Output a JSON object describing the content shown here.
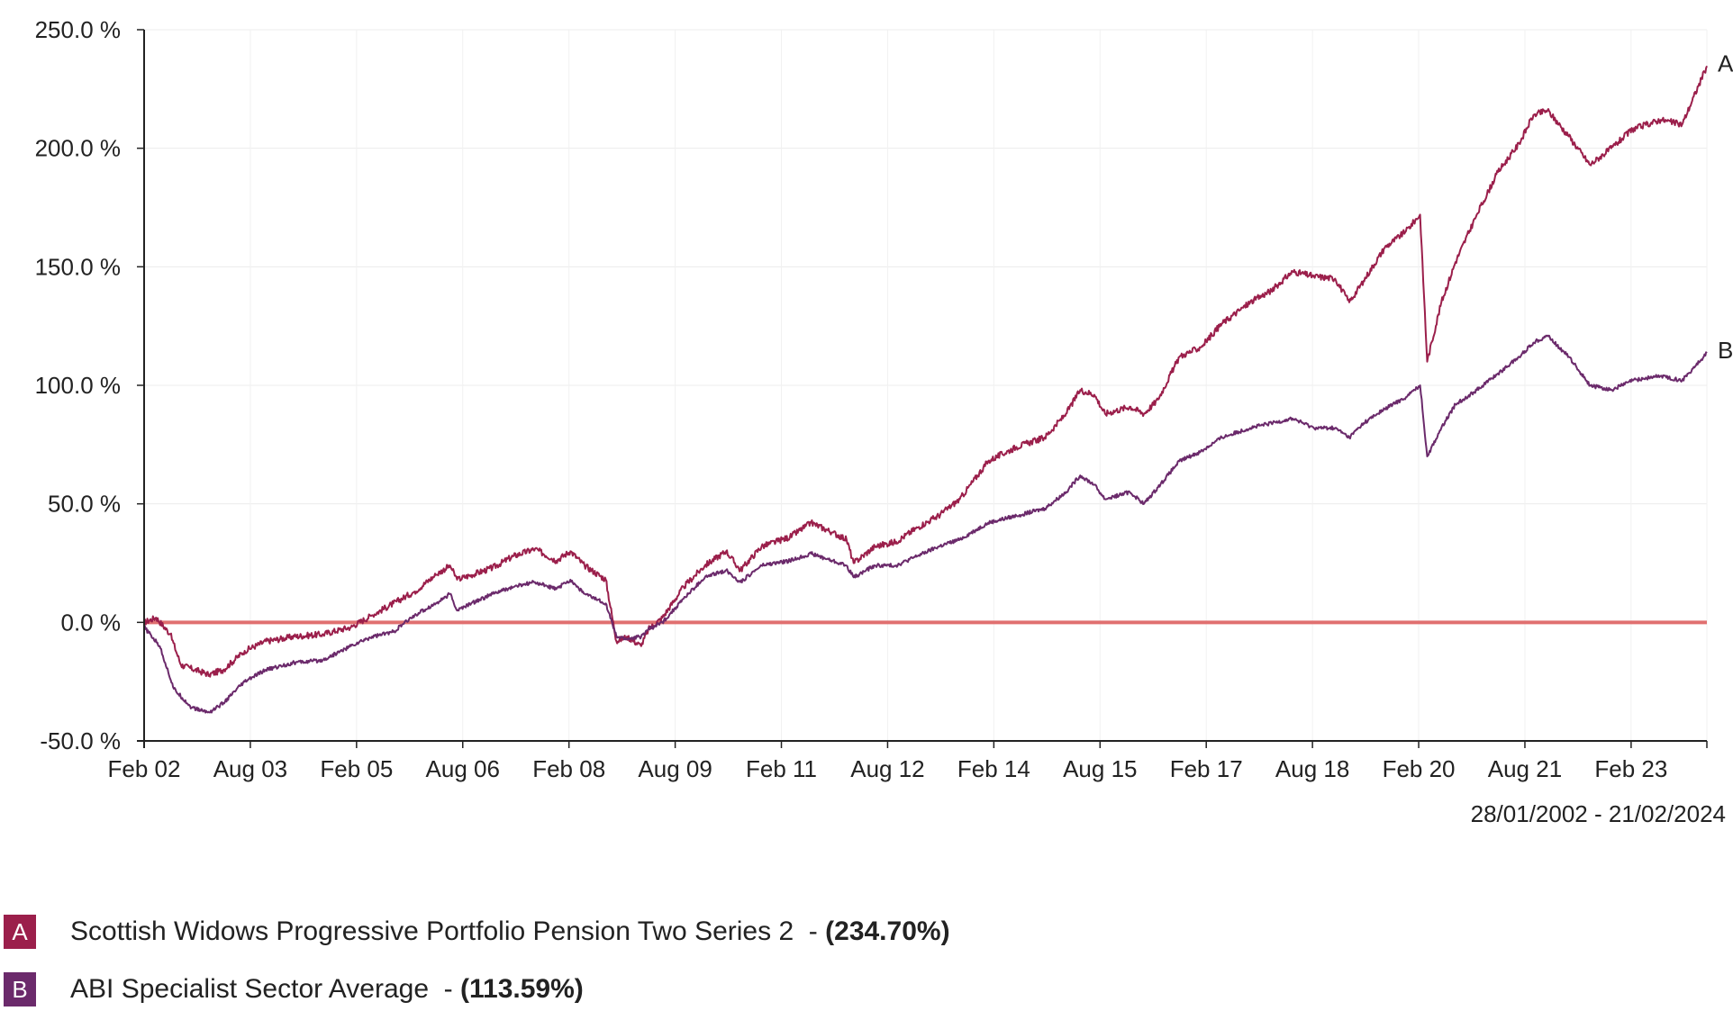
{
  "chart_data": {
    "type": "line",
    "x_ticks": [
      "Feb 02",
      "Aug 03",
      "Feb 05",
      "Aug 06",
      "Feb 08",
      "Aug 09",
      "Feb 11",
      "Aug 12",
      "Feb 14",
      "Aug 15",
      "Feb 17",
      "Aug 18",
      "Feb 20",
      "Aug 21",
      "Feb 23"
    ],
    "y_ticks": [
      250,
      200,
      150,
      100,
      50,
      0,
      -50
    ],
    "y_tick_labels": [
      "250.0 %",
      "200.0 %",
      "150.0 %",
      "100.0 %",
      "50.0 %",
      "0.0 %",
      "-50.0 %"
    ],
    "ylim": [
      -50,
      250
    ],
    "xlim": [
      2002.08,
      2024.15
    ],
    "baseline": 0,
    "date_range": "28/01/2002 - 21/02/2024",
    "series": [
      {
        "id": "A",
        "name": "Scottish Widows Progressive Portfolio Pension Two Series 2",
        "total_return": "(234.70%)",
        "color": "#9b1f4b",
        "points": [
          [
            2002.08,
            0
          ],
          [
            2002.25,
            2
          ],
          [
            2002.45,
            -5
          ],
          [
            2002.6,
            -18
          ],
          [
            2002.8,
            -20
          ],
          [
            2003.0,
            -22
          ],
          [
            2003.2,
            -20
          ],
          [
            2003.5,
            -12
          ],
          [
            2003.8,
            -8
          ],
          [
            2004.2,
            -6
          ],
          [
            2004.6,
            -5
          ],
          [
            2005.0,
            -2
          ],
          [
            2005.3,
            3
          ],
          [
            2005.6,
            8
          ],
          [
            2005.9,
            13
          ],
          [
            2006.2,
            20
          ],
          [
            2006.4,
            24
          ],
          [
            2006.5,
            18
          ],
          [
            2006.7,
            20
          ],
          [
            2007.0,
            23
          ],
          [
            2007.3,
            28
          ],
          [
            2007.6,
            31
          ],
          [
            2007.9,
            26
          ],
          [
            2008.1,
            30
          ],
          [
            2008.3,
            24
          ],
          [
            2008.6,
            18
          ],
          [
            2008.75,
            -8
          ],
          [
            2008.9,
            -6
          ],
          [
            2009.1,
            -10
          ],
          [
            2009.2,
            -3
          ],
          [
            2009.4,
            2
          ],
          [
            2009.7,
            15
          ],
          [
            2010.0,
            24
          ],
          [
            2010.3,
            30
          ],
          [
            2010.5,
            22
          ],
          [
            2010.8,
            32
          ],
          [
            2011.2,
            36
          ],
          [
            2011.5,
            42
          ],
          [
            2011.8,
            38
          ],
          [
            2012.0,
            35
          ],
          [
            2012.1,
            25
          ],
          [
            2012.4,
            32
          ],
          [
            2012.7,
            34
          ],
          [
            2013.0,
            40
          ],
          [
            2013.3,
            45
          ],
          [
            2013.6,
            52
          ],
          [
            2014.0,
            68
          ],
          [
            2014.4,
            74
          ],
          [
            2014.8,
            78
          ],
          [
            2015.1,
            88
          ],
          [
            2015.3,
            98
          ],
          [
            2015.5,
            96
          ],
          [
            2015.65,
            88
          ],
          [
            2016.0,
            91
          ],
          [
            2016.2,
            88
          ],
          [
            2016.4,
            94
          ],
          [
            2016.7,
            112
          ],
          [
            2017.0,
            116
          ],
          [
            2017.3,
            126
          ],
          [
            2017.7,
            135
          ],
          [
            2018.0,
            140
          ],
          [
            2018.3,
            148
          ],
          [
            2018.6,
            146
          ],
          [
            2018.9,
            145
          ],
          [
            2019.1,
            135
          ],
          [
            2019.3,
            144
          ],
          [
            2019.6,
            158
          ],
          [
            2019.9,
            165
          ],
          [
            2020.1,
            172
          ],
          [
            2020.2,
            110
          ],
          [
            2020.4,
            135
          ],
          [
            2020.6,
            152
          ],
          [
            2020.9,
            172
          ],
          [
            2021.2,
            190
          ],
          [
            2021.5,
            202
          ],
          [
            2021.7,
            214
          ],
          [
            2021.9,
            216
          ],
          [
            2022.2,
            205
          ],
          [
            2022.5,
            193
          ],
          [
            2022.8,
            200
          ],
          [
            2023.1,
            208
          ],
          [
            2023.5,
            212
          ],
          [
            2023.8,
            210
          ],
          [
            2024.15,
            234.7
          ]
        ]
      },
      {
        "id": "B",
        "name": "ABI Specialist Sector Average",
        "total_return": "(113.59%)",
        "color": "#6b2a6b",
        "points": [
          [
            2002.08,
            -2
          ],
          [
            2002.3,
            -10
          ],
          [
            2002.5,
            -28
          ],
          [
            2002.75,
            -36
          ],
          [
            2003.0,
            -38
          ],
          [
            2003.2,
            -34
          ],
          [
            2003.5,
            -25
          ],
          [
            2003.8,
            -20
          ],
          [
            2004.2,
            -17
          ],
          [
            2004.6,
            -16
          ],
          [
            2005.0,
            -10
          ],
          [
            2005.3,
            -6
          ],
          [
            2005.6,
            -4
          ],
          [
            2005.9,
            3
          ],
          [
            2006.2,
            8
          ],
          [
            2006.4,
            12
          ],
          [
            2006.5,
            5
          ],
          [
            2006.7,
            8
          ],
          [
            2007.0,
            12
          ],
          [
            2007.3,
            15
          ],
          [
            2007.6,
            17
          ],
          [
            2007.9,
            14
          ],
          [
            2008.1,
            18
          ],
          [
            2008.3,
            12
          ],
          [
            2008.6,
            8
          ],
          [
            2008.75,
            -6
          ],
          [
            2008.9,
            -7
          ],
          [
            2009.1,
            -6
          ],
          [
            2009.2,
            -3
          ],
          [
            2009.4,
            0
          ],
          [
            2009.7,
            10
          ],
          [
            2010.0,
            19
          ],
          [
            2010.3,
            22
          ],
          [
            2010.5,
            17
          ],
          [
            2010.8,
            24
          ],
          [
            2011.2,
            26
          ],
          [
            2011.5,
            29
          ],
          [
            2011.8,
            26
          ],
          [
            2012.0,
            24
          ],
          [
            2012.1,
            19
          ],
          [
            2012.4,
            24
          ],
          [
            2012.7,
            24
          ],
          [
            2013.0,
            28
          ],
          [
            2013.3,
            32
          ],
          [
            2013.6,
            35
          ],
          [
            2014.0,
            42
          ],
          [
            2014.4,
            45
          ],
          [
            2014.8,
            48
          ],
          [
            2015.1,
            55
          ],
          [
            2015.3,
            62
          ],
          [
            2015.5,
            58
          ],
          [
            2015.65,
            52
          ],
          [
            2016.0,
            55
          ],
          [
            2016.2,
            50
          ],
          [
            2016.4,
            57
          ],
          [
            2016.7,
            68
          ],
          [
            2017.0,
            72
          ],
          [
            2017.3,
            78
          ],
          [
            2017.7,
            82
          ],
          [
            2018.0,
            84
          ],
          [
            2018.3,
            86
          ],
          [
            2018.6,
            82
          ],
          [
            2018.9,
            82
          ],
          [
            2019.1,
            78
          ],
          [
            2019.3,
            84
          ],
          [
            2019.6,
            90
          ],
          [
            2019.9,
            95
          ],
          [
            2020.1,
            100
          ],
          [
            2020.2,
            70
          ],
          [
            2020.4,
            82
          ],
          [
            2020.6,
            92
          ],
          [
            2020.9,
            98
          ],
          [
            2021.2,
            105
          ],
          [
            2021.5,
            112
          ],
          [
            2021.7,
            118
          ],
          [
            2021.9,
            121
          ],
          [
            2022.2,
            112
          ],
          [
            2022.5,
            100
          ],
          [
            2022.8,
            98
          ],
          [
            2023.1,
            102
          ],
          [
            2023.5,
            104
          ],
          [
            2023.8,
            102
          ],
          [
            2024.15,
            113.59
          ]
        ]
      }
    ]
  },
  "legend": [
    {
      "id": "A",
      "name": "Scottish Widows Progressive Portfolio Pension Two Series 2 ",
      "separator": " - ",
      "value": "(234.70%)",
      "color": "#9b1f4b"
    },
    {
      "id": "B",
      "name": "ABI Specialist Sector Average ",
      "separator": " - ",
      "value": "(113.59%)",
      "color": "#6b2a6b"
    }
  ]
}
